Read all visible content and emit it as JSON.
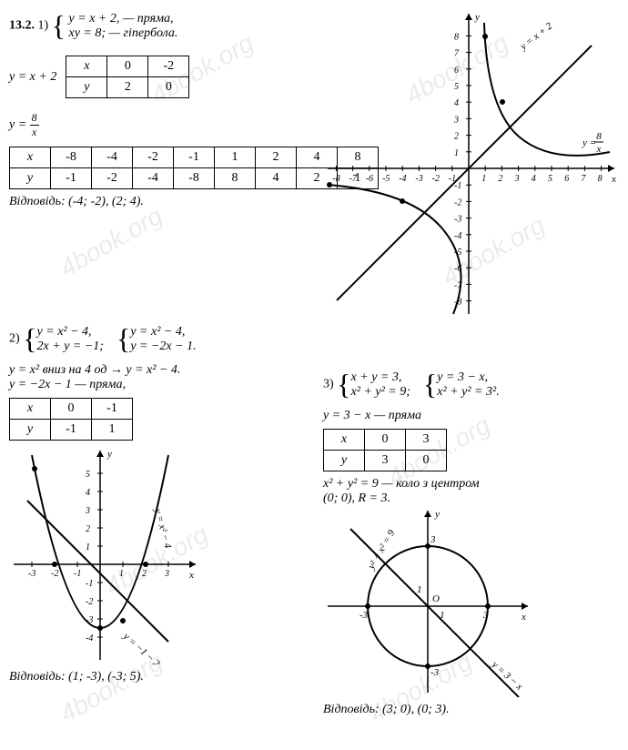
{
  "problem_number": "13.2.",
  "p1": {
    "system_lines": [
      "y = x + 2, — пряма,",
      "xy = 8; — гіпербола."
    ],
    "eq1_label": "y = x + 2",
    "eq2_label_prefix": "y = ",
    "eq2_frac_num": "8",
    "eq2_frac_den": "x",
    "table1": {
      "headers": [
        "x",
        "y"
      ],
      "cols": [
        [
          "0",
          "2"
        ],
        [
          "-2",
          "0"
        ]
      ]
    },
    "table2": {
      "headers": [
        "x",
        "y"
      ],
      "cols": [
        [
          "-8",
          "-1"
        ],
        [
          "-4",
          "-2"
        ],
        [
          "-2",
          "-4"
        ],
        [
          "-1",
          "-8"
        ],
        [
          "1",
          "8"
        ],
        [
          "2",
          "4"
        ],
        [
          "4",
          "2"
        ],
        [
          "8",
          "1"
        ]
      ]
    },
    "answer": "Відповідь: (-4; -2), (2; 4)."
  },
  "p2": {
    "system_a": [
      "y = x² − 4,",
      "2x + y = −1;"
    ],
    "system_b": [
      "y = x² − 4,",
      "y = −2x − 1."
    ],
    "line1": "y = x² вниз на 4 од → y = x² − 4.",
    "line2": "y = −2x − 1 — пряма,",
    "table": {
      "headers": [
        "x",
        "y"
      ],
      "cols": [
        [
          "0",
          "-1"
        ],
        [
          "-1",
          "1"
        ]
      ]
    },
    "answer": "Відповідь: (1; -3), (-3; 5).",
    "curve_label1": "y = x² − 4",
    "curve_label2": "y = −1 − 2x"
  },
  "p3": {
    "system_a": [
      "x + y = 3,",
      "x² + y² = 9;"
    ],
    "system_b": [
      "y = 3 − x,",
      "x² + y² = 3²."
    ],
    "line1": "y = 3 − x — пряма",
    "table": {
      "headers": [
        "x",
        "y"
      ],
      "cols": [
        [
          "0",
          "3"
        ],
        [
          "3",
          "0"
        ]
      ]
    },
    "line2": "x² + y² = 9 — коло з центром",
    "line3": "(0; 0), R = 3.",
    "answer": "Відповідь: (3; 0), (0; 3).",
    "circle_label": "y² + x² = 9",
    "line_label": "y = 3 − x"
  },
  "chart1": {
    "x_axis_label": "x",
    "y_axis_label": "y",
    "x_range": [
      -8,
      8
    ],
    "y_range": [
      -8,
      8
    ],
    "line_label": "y = x + 2",
    "hyp_label_prefix": "y = ",
    "hyp_frac_num": "8",
    "hyp_frac_den": "x",
    "axis_color": "#000",
    "curve_color": "#000",
    "bg": "#fff",
    "tick_fontsize": 10
  },
  "chart2": {
    "x_axis_label": "x",
    "y_axis_label": "y",
    "x_range": [
      -3,
      3
    ],
    "y_range": [
      -5,
      5
    ],
    "axis_color": "#000",
    "curve_color": "#000"
  },
  "chart3": {
    "x_axis_label": "x",
    "y_axis_label": "y",
    "origin_label": "O",
    "range": [
      -4,
      4
    ],
    "axis_color": "#000",
    "curve_color": "#000"
  },
  "watermark_text": "4book.org"
}
